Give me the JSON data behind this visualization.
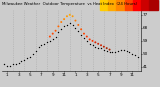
{
  "background_color": "#cccccc",
  "plot_bg_color": "#cccccc",
  "ylim": [
    38,
    80
  ],
  "xlim": [
    0.0,
    24.5
  ],
  "temp_color": "#000000",
  "heat_colors": [
    "#ff4400",
    "#ff6600",
    "#ff8800",
    "#ffaa00",
    "#ffcc00"
  ],
  "grid_color": "#aaaaaa",
  "temp_x": [
    0.5,
    1,
    1.5,
    2,
    2.5,
    3,
    3.5,
    4,
    4.5,
    5,
    5.5,
    6,
    6.5,
    7,
    7.5,
    8,
    8.5,
    9,
    9.5,
    10,
    10.5,
    11,
    11.5,
    12,
    12.5,
    13,
    13.5,
    14,
    14.5,
    15,
    15.5,
    16,
    16.5,
    17,
    17.5,
    18,
    18.5,
    19,
    19.5,
    20,
    20.5,
    21,
    21.5,
    22,
    22.5,
    23,
    23.5,
    24
  ],
  "temp_y": [
    43,
    42,
    42,
    43,
    43,
    44,
    45,
    46,
    47,
    48,
    50,
    52,
    55,
    56,
    57,
    58,
    59,
    60,
    62,
    65,
    67,
    69,
    70,
    71,
    70,
    68,
    66,
    63,
    61,
    59,
    57,
    56,
    55,
    54,
    54,
    53,
    52,
    51,
    51,
    51,
    52,
    53,
    53,
    52,
    51,
    50,
    49,
    48
  ],
  "heat_x": [
    8.5,
    9,
    9.5,
    10,
    10.5,
    11,
    11.5,
    12,
    12.5,
    13,
    13.5,
    14,
    14.5,
    15,
    15.5,
    16,
    16.5,
    17,
    17.5,
    18,
    18.5,
    19
  ],
  "heat_y": [
    62,
    64,
    66,
    69,
    72,
    74,
    76,
    77,
    76,
    73,
    70,
    67,
    64,
    62,
    60,
    59,
    58,
    57,
    56,
    55,
    54,
    53
  ],
  "heat_point_colors": [
    "#ff4400",
    "#ff4400",
    "#ff5500",
    "#ff6600",
    "#ff7700",
    "#ff8800",
    "#ff9900",
    "#ffaa00",
    "#ff9900",
    "#ff7700",
    "#ff6600",
    "#ff5500",
    "#ff4400",
    "#ff3300",
    "#ff3300",
    "#ff3300",
    "#dd2200",
    "#cc2200",
    "#cc2200",
    "#bb2200",
    "#aa2200",
    "#aa2200"
  ],
  "vgrid_positions": [
    2,
    4,
    6,
    8,
    10,
    12,
    14,
    16,
    18,
    20,
    22,
    24
  ],
  "xtick_pos": [
    1,
    3,
    5,
    7,
    9,
    11,
    13,
    15,
    17,
    19,
    21,
    23
  ],
  "xtick_labels": [
    "1",
    "3",
    "5",
    "7",
    "9",
    "11",
    "1",
    "3",
    "5",
    "7",
    "9",
    "11"
  ],
  "ytick_pos": [
    41,
    50,
    59,
    68,
    77
  ],
  "ytick_labels": [
    "41",
    "50",
    "59",
    "68",
    "77"
  ],
  "bar_colors": [
    "#ffcc00",
    "#ffaa00",
    "#ff8800",
    "#ff4400",
    "#ff0000",
    "#cc0000",
    "#aa0000"
  ],
  "bar_x_start": 0.625,
  "bar_x_end": 0.985
}
